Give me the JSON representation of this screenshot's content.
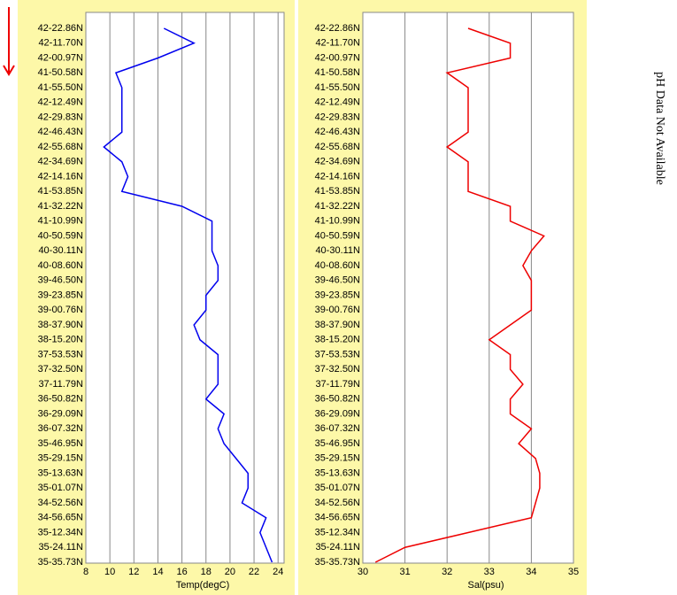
{
  "chart_data": [
    {
      "type": "line",
      "orientation": "horizontal",
      "xlabel": "Temp(degC)",
      "categories": [
        "42-22.86N",
        "42-11.70N",
        "42-00.97N",
        "41-50.58N",
        "41-55.50N",
        "42-12.49N",
        "42-29.83N",
        "42-46.43N",
        "42-55.68N",
        "42-34.69N",
        "42-14.16N",
        "41-53.85N",
        "41-32.22N",
        "41-10.99N",
        "40-50.59N",
        "40-30.11N",
        "40-08.60N",
        "39-46.50N",
        "39-23.85N",
        "39-00.76N",
        "38-37.90N",
        "38-15.20N",
        "37-53.53N",
        "37-32.50N",
        "37-11.79N",
        "36-50.82N",
        "36-29.09N",
        "36-07.32N",
        "35-46.95N",
        "35-29.15N",
        "35-13.63N",
        "35-01.07N",
        "34-52.56N",
        "34-56.65N",
        "35-12.34N",
        "35-24.11N",
        "35-35.73N"
      ],
      "series": [
        {
          "color": "#0000ee",
          "values": [
            14.5,
            17,
            14,
            10.5,
            11,
            11,
            11,
            11,
            9.5,
            11,
            11.5,
            11,
            16,
            18.5,
            18.5,
            18.5,
            19,
            19,
            18,
            18,
            17,
            17.5,
            19,
            19,
            19,
            18,
            19.5,
            19,
            19.5,
            20.5,
            21.5,
            21.5,
            21,
            23,
            22.5,
            23,
            23.5
          ]
        }
      ],
      "xlim": [
        8,
        24.5
      ],
      "xticks": [
        8,
        10,
        12,
        14,
        16,
        18,
        20,
        22,
        24
      ],
      "grid": true
    },
    {
      "type": "line",
      "orientation": "horizontal",
      "xlabel": "Sal(psu)",
      "categories": [
        "42-22.86N",
        "42-11.70N",
        "42-00.97N",
        "41-50.58N",
        "41-55.50N",
        "42-12.49N",
        "42-29.83N",
        "42-46.43N",
        "42-55.68N",
        "42-34.69N",
        "42-14.16N",
        "41-53.85N",
        "41-32.22N",
        "41-10.99N",
        "40-50.59N",
        "40-30.11N",
        "40-08.60N",
        "39-46.50N",
        "39-23.85N",
        "39-00.76N",
        "38-37.90N",
        "38-15.20N",
        "37-53.53N",
        "37-32.50N",
        "37-11.79N",
        "36-50.82N",
        "36-29.09N",
        "36-07.32N",
        "35-46.95N",
        "35-29.15N",
        "35-13.63N",
        "35-01.07N",
        "34-52.56N",
        "34-56.65N",
        "35-12.34N",
        "35-24.11N",
        "35-35.73N"
      ],
      "series": [
        {
          "color": "#ee0000",
          "values": [
            32.5,
            33.5,
            33.5,
            32,
            32.5,
            32.5,
            32.5,
            32.5,
            32,
            32.5,
            32.5,
            32.5,
            33.5,
            33.5,
            34.3,
            34,
            33.8,
            34,
            34,
            34,
            33.5,
            33,
            33.5,
            33.5,
            33.8,
            33.5,
            33.5,
            34,
            33.7,
            34.1,
            34.2,
            34.2,
            34.1,
            34,
            32.5,
            31,
            30.3
          ]
        }
      ],
      "xlim": [
        30,
        35
      ],
      "xticks": [
        30,
        31,
        32,
        33,
        34,
        35
      ],
      "grid": true
    }
  ],
  "note": "pH Data Not Available"
}
